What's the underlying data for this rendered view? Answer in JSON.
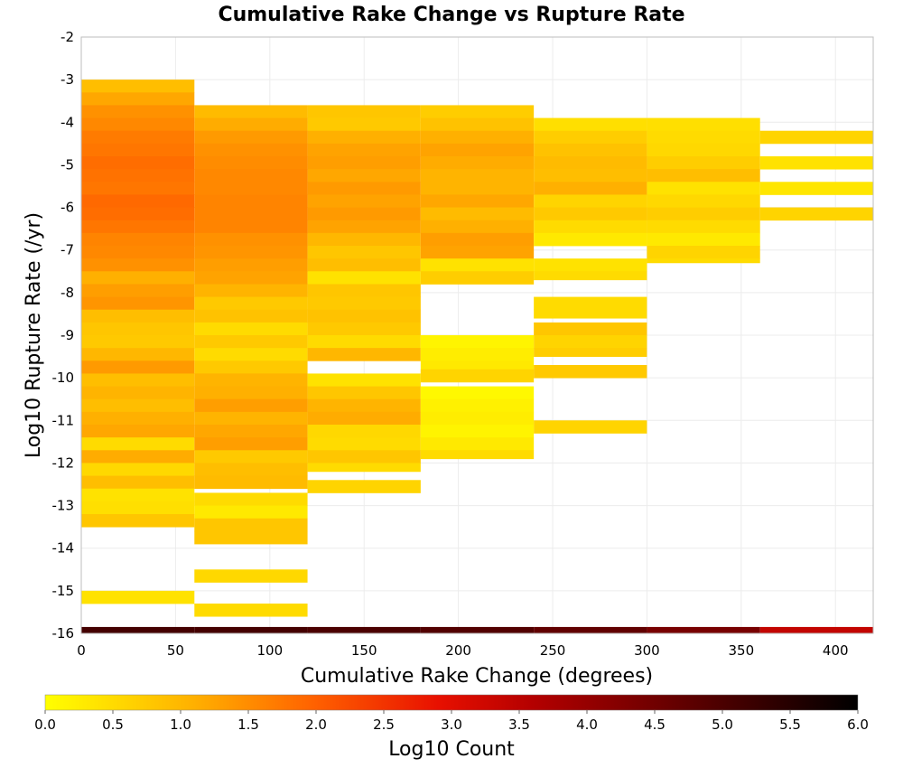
{
  "chart_data": {
    "type": "heatmap",
    "title": "Cumulative Rake Change vs Rupture Rate",
    "xlabel": "Cumulative Rake Change (degrees)",
    "ylabel": "Log10 Rupture Rate (/yr)",
    "xlim": [
      0,
      420
    ],
    "ylim": [
      -16,
      -2
    ],
    "xticks": [
      "0",
      "50",
      "100",
      "150",
      "200",
      "250",
      "300",
      "350",
      "400"
    ],
    "xtick_values": [
      0,
      50,
      100,
      150,
      200,
      250,
      300,
      350,
      400
    ],
    "yticks": [
      "-2",
      "-3",
      "-4",
      "-5",
      "-6",
      "-7",
      "-8",
      "-9",
      "-10",
      "-11",
      "-12",
      "-13",
      "-14",
      "-15",
      "-16"
    ],
    "ytick_values": [
      -2,
      -3,
      -4,
      -5,
      -6,
      -7,
      -8,
      -9,
      -10,
      -11,
      -12,
      -13,
      -14,
      -15,
      -16
    ],
    "grid": true,
    "bin_width_x": 60,
    "bin_height_y": 0.3,
    "colorbar": {
      "label": "Log10 Count",
      "range": [
        0,
        6
      ],
      "ticks": [
        "0.0",
        "0.5",
        "1.0",
        "1.5",
        "2.0",
        "2.5",
        "3.0",
        "3.5",
        "4.0",
        "4.5",
        "5.0",
        "5.5",
        "6.0"
      ],
      "tick_values": [
        0,
        0.5,
        1,
        1.5,
        2,
        2.5,
        3,
        3.5,
        4,
        4.5,
        5,
        5.5,
        6
      ],
      "stops": [
        {
          "v": 0,
          "color": "#ffff00"
        },
        {
          "v": 1.1,
          "color": "#ffb000"
        },
        {
          "v": 2.0,
          "color": "#ff6000"
        },
        {
          "v": 2.9,
          "color": "#e81000"
        },
        {
          "v": 3.6,
          "color": "#b40000"
        },
        {
          "v": 4.8,
          "color": "#5a0000"
        },
        {
          "v": 6.0,
          "color": "#000000"
        }
      ]
    },
    "columns": [
      {
        "x0": 0,
        "x1": 60,
        "cells": [
          [
            -3.3,
            -3.0,
            0.9
          ],
          [
            -3.6,
            -3.3,
            1.2
          ],
          [
            -3.9,
            -3.6,
            1.45
          ],
          [
            -4.2,
            -3.9,
            1.55
          ],
          [
            -4.5,
            -4.2,
            1.7
          ],
          [
            -4.8,
            -4.5,
            1.75
          ],
          [
            -5.1,
            -4.8,
            1.85
          ],
          [
            -5.4,
            -5.1,
            1.8
          ],
          [
            -5.7,
            -5.4,
            1.75
          ],
          [
            -6.0,
            -5.7,
            1.9
          ],
          [
            -6.3,
            -6.0,
            1.85
          ],
          [
            -6.6,
            -6.3,
            1.75
          ],
          [
            -6.9,
            -6.6,
            1.6
          ],
          [
            -7.2,
            -6.9,
            1.55
          ],
          [
            -7.5,
            -7.2,
            1.45
          ],
          [
            -7.8,
            -7.5,
            1.1
          ],
          [
            -8.1,
            -7.8,
            1.3
          ],
          [
            -8.4,
            -8.1,
            1.4
          ],
          [
            -8.7,
            -8.4,
            0.9
          ],
          [
            -9.0,
            -8.7,
            0.8
          ],
          [
            -9.3,
            -9.0,
            0.75
          ],
          [
            -9.6,
            -9.3,
            1.0
          ],
          [
            -9.9,
            -9.6,
            1.35
          ],
          [
            -10.2,
            -9.9,
            0.9
          ],
          [
            -10.5,
            -10.2,
            1.05
          ],
          [
            -10.8,
            -10.5,
            0.9
          ],
          [
            -11.1,
            -10.8,
            1.1
          ],
          [
            -11.4,
            -11.1,
            1.2
          ],
          [
            -11.7,
            -11.4,
            0.5
          ],
          [
            -12.0,
            -11.7,
            1.15
          ],
          [
            -12.3,
            -12.0,
            0.55
          ],
          [
            -12.6,
            -12.3,
            0.9
          ],
          [
            -12.9,
            -12.6,
            0.4
          ],
          [
            -13.2,
            -12.9,
            0.45
          ],
          [
            -13.5,
            -13.2,
            0.8
          ],
          [
            -15.3,
            -15.0,
            0.4
          ],
          [
            -16.0,
            -15.85,
            5.1
          ]
        ]
      },
      {
        "x0": 60,
        "x1": 120,
        "cells": [
          [
            -3.9,
            -3.6,
            0.95
          ],
          [
            -4.2,
            -3.9,
            1.15
          ],
          [
            -4.5,
            -4.2,
            1.35
          ],
          [
            -4.8,
            -4.5,
            1.45
          ],
          [
            -5.1,
            -4.8,
            1.5
          ],
          [
            -5.4,
            -5.1,
            1.55
          ],
          [
            -5.7,
            -5.4,
            1.55
          ],
          [
            -6.0,
            -5.7,
            1.6
          ],
          [
            -6.3,
            -6.0,
            1.6
          ],
          [
            -6.6,
            -6.3,
            1.6
          ],
          [
            -6.9,
            -6.6,
            1.45
          ],
          [
            -7.2,
            -6.9,
            1.4
          ],
          [
            -7.5,
            -7.2,
            1.3
          ],
          [
            -7.8,
            -7.5,
            1.25
          ],
          [
            -8.1,
            -7.8,
            1.05
          ],
          [
            -8.4,
            -8.1,
            0.75
          ],
          [
            -8.7,
            -8.4,
            0.85
          ],
          [
            -9.0,
            -8.7,
            0.5
          ],
          [
            -9.3,
            -9.0,
            0.75
          ],
          [
            -9.6,
            -9.3,
            0.5
          ],
          [
            -9.9,
            -9.6,
            0.75
          ],
          [
            -10.2,
            -9.9,
            1.05
          ],
          [
            -10.5,
            -10.2,
            1.1
          ],
          [
            -10.8,
            -10.5,
            1.3
          ],
          [
            -11.1,
            -10.8,
            1.05
          ],
          [
            -11.4,
            -11.1,
            1.2
          ],
          [
            -11.7,
            -11.4,
            1.3
          ],
          [
            -12.0,
            -11.7,
            0.75
          ],
          [
            -12.3,
            -12.0,
            0.9
          ],
          [
            -12.6,
            -12.3,
            0.95
          ],
          [
            -13.0,
            -12.7,
            0.5
          ],
          [
            -13.3,
            -13.0,
            0.3
          ],
          [
            -13.6,
            -13.3,
            0.8
          ],
          [
            -13.9,
            -13.6,
            0.8
          ],
          [
            -14.8,
            -14.5,
            0.55
          ],
          [
            -15.6,
            -15.3,
            0.5
          ],
          [
            -16.0,
            -15.85,
            5.1
          ]
        ]
      },
      {
        "x0": 120,
        "x1": 180,
        "cells": [
          [
            -3.9,
            -3.6,
            0.8
          ],
          [
            -4.2,
            -3.9,
            0.75
          ],
          [
            -4.5,
            -4.2,
            1.1
          ],
          [
            -4.8,
            -4.5,
            1.25
          ],
          [
            -5.1,
            -4.8,
            1.3
          ],
          [
            -5.4,
            -5.1,
            1.2
          ],
          [
            -5.7,
            -5.4,
            1.35
          ],
          [
            -6.0,
            -5.7,
            1.25
          ],
          [
            -6.3,
            -6.0,
            1.35
          ],
          [
            -6.6,
            -6.3,
            1.25
          ],
          [
            -6.9,
            -6.6,
            1.0
          ],
          [
            -7.2,
            -6.9,
            0.8
          ],
          [
            -7.5,
            -7.2,
            0.9
          ],
          [
            -7.8,
            -7.5,
            0.4
          ],
          [
            -8.1,
            -7.8,
            0.8
          ],
          [
            -8.4,
            -8.1,
            0.75
          ],
          [
            -8.7,
            -8.4,
            0.85
          ],
          [
            -9.0,
            -8.7,
            0.75
          ],
          [
            -9.3,
            -9.0,
            0.5
          ],
          [
            -9.6,
            -9.3,
            1.0
          ],
          [
            -10.2,
            -9.9,
            0.4
          ],
          [
            -10.5,
            -10.2,
            0.8
          ],
          [
            -10.8,
            -10.5,
            1.05
          ],
          [
            -11.1,
            -10.8,
            1.15
          ],
          [
            -11.4,
            -11.1,
            0.55
          ],
          [
            -11.7,
            -11.4,
            0.5
          ],
          [
            -12.0,
            -11.7,
            0.8
          ],
          [
            -12.2,
            -12.0,
            0.5
          ],
          [
            -12.7,
            -12.4,
            0.6
          ],
          [
            -16.0,
            -15.85,
            5.0
          ]
        ]
      },
      {
        "x0": 180,
        "x1": 240,
        "cells": [
          [
            -3.9,
            -3.6,
            0.7
          ],
          [
            -4.2,
            -3.9,
            0.85
          ],
          [
            -4.5,
            -4.2,
            1.1
          ],
          [
            -4.8,
            -4.5,
            1.25
          ],
          [
            -5.1,
            -4.8,
            1.15
          ],
          [
            -5.4,
            -5.1,
            1.05
          ],
          [
            -5.7,
            -5.4,
            1.05
          ],
          [
            -6.0,
            -5.7,
            1.2
          ],
          [
            -6.3,
            -6.0,
            0.95
          ],
          [
            -6.6,
            -6.3,
            1.1
          ],
          [
            -6.9,
            -6.6,
            1.3
          ],
          [
            -7.2,
            -6.9,
            1.25
          ],
          [
            -7.5,
            -7.2,
            0.4
          ],
          [
            -7.8,
            -7.5,
            0.7
          ],
          [
            -9.3,
            -9.0,
            0.15
          ],
          [
            -9.6,
            -9.3,
            0.25
          ],
          [
            -9.9,
            -9.6,
            0.3
          ],
          [
            -10.1,
            -9.8,
            0.6
          ],
          [
            -10.5,
            -10.2,
            0.1
          ],
          [
            -10.8,
            -10.5,
            0.2
          ],
          [
            -11.1,
            -10.8,
            0.25
          ],
          [
            -11.4,
            -11.1,
            0.15
          ],
          [
            -11.7,
            -11.4,
            0.3
          ],
          [
            -11.9,
            -11.7,
            0.5
          ],
          [
            -16.0,
            -15.85,
            4.9
          ]
        ]
      },
      {
        "x0": 240,
        "x1": 300,
        "cells": [
          [
            -4.2,
            -3.9,
            0.45
          ],
          [
            -4.5,
            -4.2,
            0.7
          ],
          [
            -4.8,
            -4.5,
            0.85
          ],
          [
            -5.1,
            -4.8,
            0.95
          ],
          [
            -5.4,
            -5.1,
            0.9
          ],
          [
            -5.7,
            -5.4,
            1.1
          ],
          [
            -6.0,
            -5.7,
            0.6
          ],
          [
            -6.3,
            -6.0,
            0.75
          ],
          [
            -6.6,
            -6.3,
            0.5
          ],
          [
            -6.9,
            -6.6,
            0.3
          ],
          [
            -7.5,
            -7.2,
            0.4
          ],
          [
            -7.7,
            -7.5,
            0.5
          ],
          [
            -8.4,
            -8.1,
            0.5
          ],
          [
            -8.6,
            -8.4,
            0.5
          ],
          [
            -9.0,
            -8.7,
            0.8
          ],
          [
            -9.3,
            -9.0,
            0.6
          ],
          [
            -9.5,
            -9.3,
            0.7
          ],
          [
            -10.0,
            -9.7,
            0.75
          ],
          [
            -11.3,
            -11.0,
            0.6
          ],
          [
            -16.0,
            -15.85,
            4.7
          ]
        ]
      },
      {
        "x0": 300,
        "x1": 360,
        "cells": [
          [
            -4.2,
            -3.9,
            0.45
          ],
          [
            -4.5,
            -4.2,
            0.5
          ],
          [
            -4.8,
            -4.5,
            0.55
          ],
          [
            -5.1,
            -4.8,
            0.7
          ],
          [
            -5.4,
            -5.1,
            0.9
          ],
          [
            -5.7,
            -5.4,
            0.4
          ],
          [
            -6.0,
            -5.7,
            0.55
          ],
          [
            -6.3,
            -6.0,
            0.7
          ],
          [
            -6.6,
            -6.3,
            0.5
          ],
          [
            -6.9,
            -6.6,
            0.3
          ],
          [
            -7.2,
            -6.9,
            0.6
          ],
          [
            -7.3,
            -7.2,
            0.5
          ],
          [
            -16.0,
            -15.85,
            4.4
          ]
        ]
      },
      {
        "x0": 360,
        "x1": 420,
        "cells": [
          [
            -4.5,
            -4.2,
            0.6
          ],
          [
            -5.1,
            -4.8,
            0.4
          ],
          [
            -5.7,
            -5.4,
            0.35
          ],
          [
            -6.3,
            -6.0,
            0.6
          ],
          [
            -16.0,
            -15.85,
            3.4
          ]
        ]
      }
    ]
  }
}
